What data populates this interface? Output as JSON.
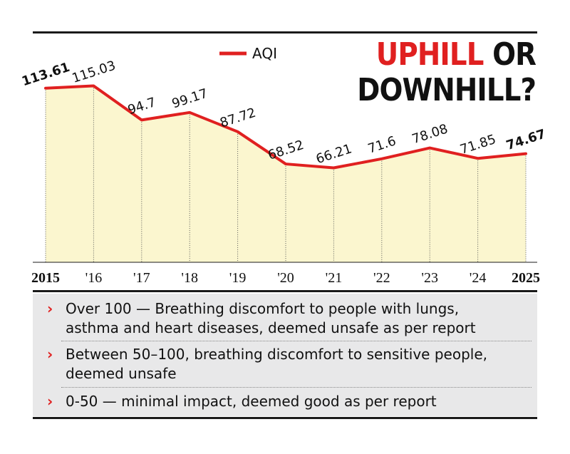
{
  "title": {
    "red": "UPHILL",
    "black_same_line": "OR",
    "line2": "DOWNHILL?"
  },
  "legend": {
    "label": "AQI",
    "color": "#e02020"
  },
  "colors": {
    "line": "#e02020",
    "area": "#fbf6cf",
    "accent": "#e02020"
  },
  "chart_data": {
    "type": "line",
    "title": "UPHILL OR DOWNHILL?",
    "xlabel": "",
    "ylabel": "",
    "grid": false,
    "legend": "top-center",
    "categories": [
      "2015",
      "'16",
      "'17",
      "'18",
      "'19",
      "'20",
      "'21",
      "'22",
      "'23",
      "'24",
      "2025"
    ],
    "series": [
      {
        "name": "AQI",
        "values": [
          113.61,
          115.03,
          94.7,
          99.17,
          87.72,
          68.52,
          66.21,
          71.6,
          78.08,
          71.85,
          74.67
        ],
        "labels": [
          "113.61",
          "115.03",
          "94.7",
          "99.17",
          "87.72",
          "68.52",
          "66.21",
          "71.6",
          "78.08",
          "71.85",
          "74.67"
        ]
      }
    ],
    "ylim": [
      0,
      130
    ]
  },
  "notes": [
    {
      "lines": [
        "Over 100 — Breathing discomfort to people with lungs,",
        "asthma and heart diseases, deemed unsafe as per report"
      ]
    },
    {
      "lines": [
        "Between 50–100, breathing discomfort to sensitive people,",
        "deemed unsafe"
      ]
    },
    {
      "lines": [
        "0-50 — minimal impact, deemed good as per report"
      ]
    }
  ],
  "icons": {
    "bullet": "chevron-right-icon"
  }
}
